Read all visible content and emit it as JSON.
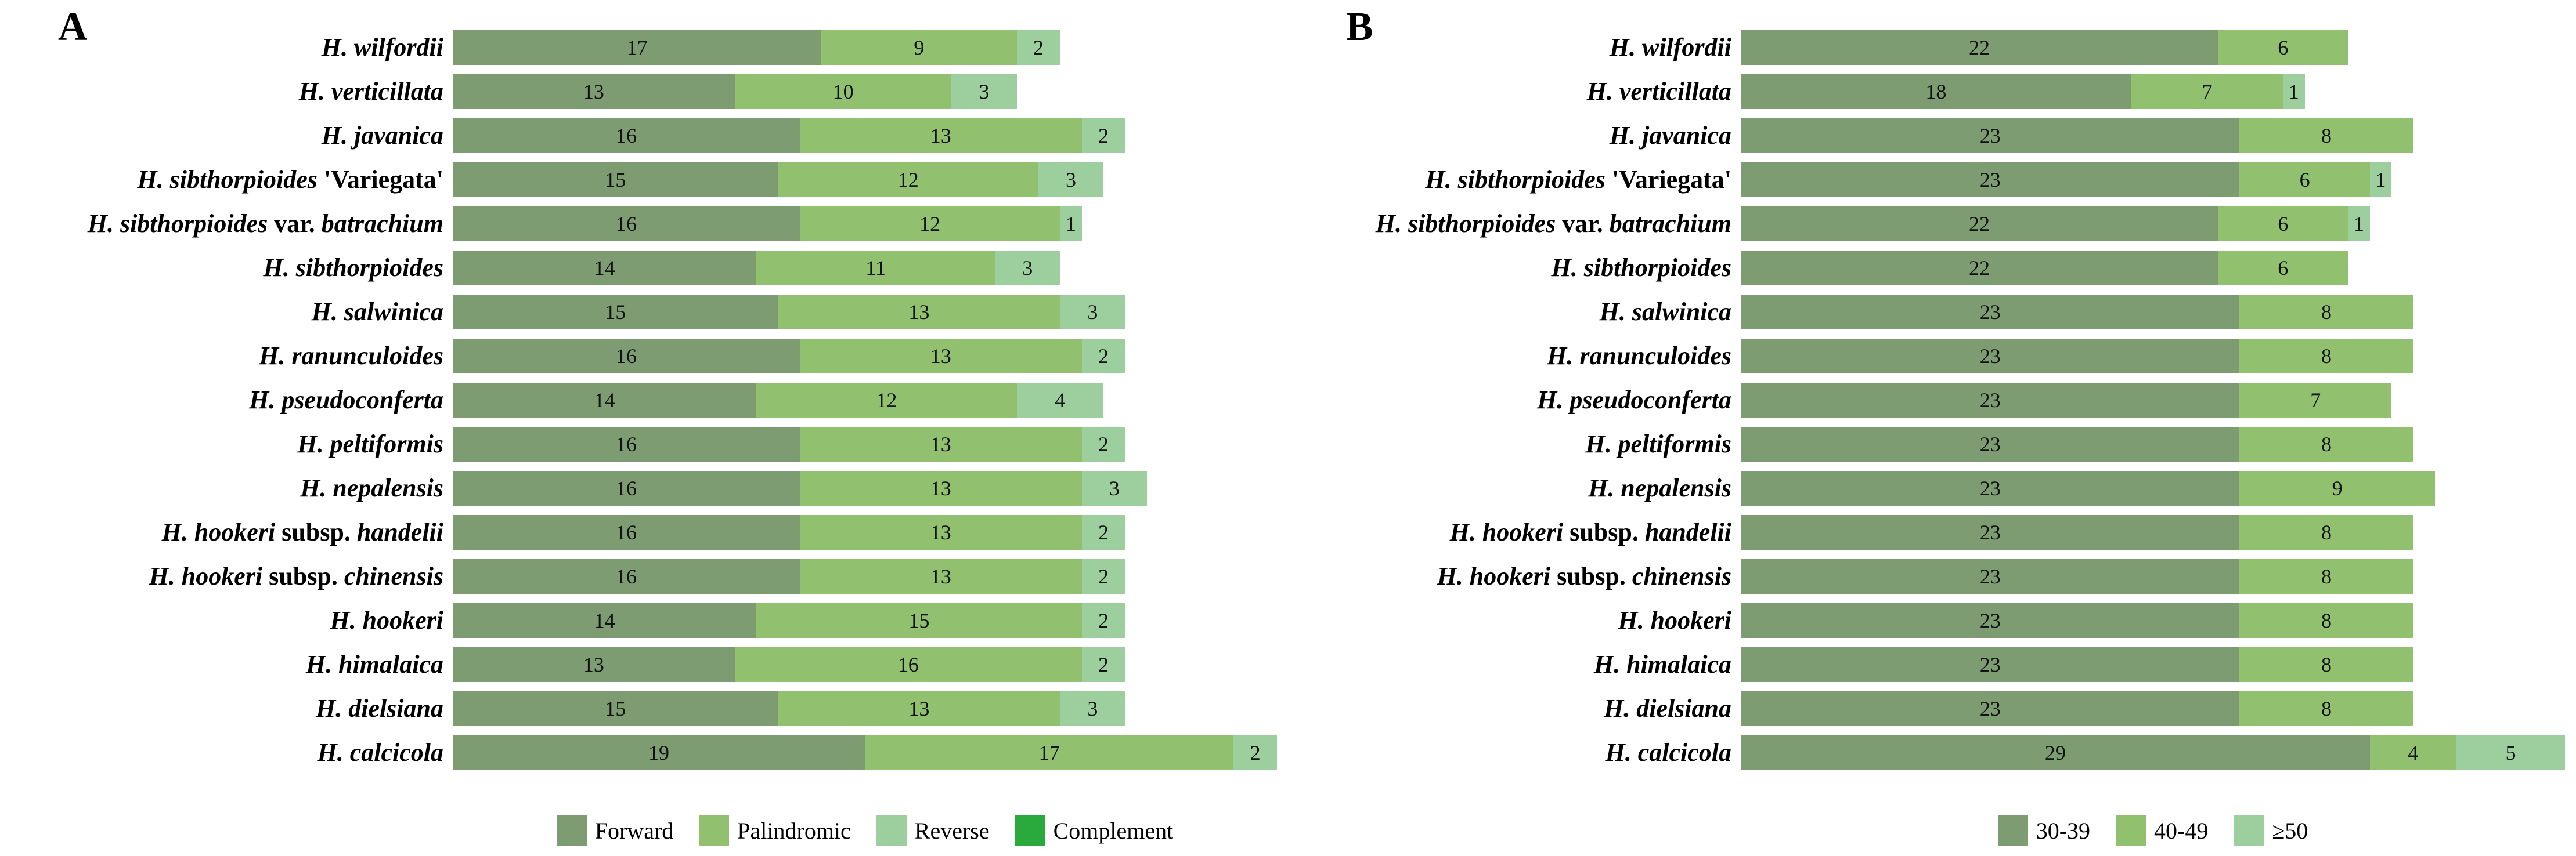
{
  "chart_data": [
    {
      "type": "bar",
      "orientation": "horizontal",
      "panel_label": "A",
      "title": "",
      "xlabel": "",
      "ylabel": "",
      "xlim": [
        0,
        38
      ],
      "grid": false,
      "legend_position": "bottom",
      "value_labels": "inside-center",
      "categories": [
        "H. wilfordii",
        "H. verticillata",
        "H. javanica",
        "H. sibthorpioides 'Variegata'",
        "H. sibthorpioides var. batrachium",
        "H. sibthorpioides",
        "H. salwinica",
        "H. ranunculoides",
        "H. pseudoconferta",
        "H. peltiformis",
        "H. nepalensis",
        "H. hookeri subsp. handelii",
        "H. hookeri subsp. chinensis",
        "H. hookeri",
        "H. himalaica",
        "H. dielsiana",
        "H. calcicola"
      ],
      "category_styled_parts": [
        [
          {
            "text": "H. wilfordii",
            "italic": true
          }
        ],
        [
          {
            "text": "H. verticillata",
            "italic": true
          }
        ],
        [
          {
            "text": "H. javanica",
            "italic": true
          }
        ],
        [
          {
            "text": "H. sibthorpioides ",
            "italic": true
          },
          {
            "text": "'Variegata'",
            "italic": false
          }
        ],
        [
          {
            "text": "H. sibthorpioides ",
            "italic": true
          },
          {
            "text": "var. ",
            "italic": false
          },
          {
            "text": "batrachium",
            "italic": true
          }
        ],
        [
          {
            "text": "H. sibthorpioides",
            "italic": true
          }
        ],
        [
          {
            "text": "H. salwinica",
            "italic": true
          }
        ],
        [
          {
            "text": "H. ranunculoides",
            "italic": true
          }
        ],
        [
          {
            "text": "H. pseudoconferta",
            "italic": true
          }
        ],
        [
          {
            "text": "H. peltiformis",
            "italic": true
          }
        ],
        [
          {
            "text": "H. nepalensis",
            "italic": true
          }
        ],
        [
          {
            "text": "H. hookeri ",
            "italic": true
          },
          {
            "text": "subsp. ",
            "italic": false
          },
          {
            "text": "handelii",
            "italic": true
          }
        ],
        [
          {
            "text": "H. hookeri ",
            "italic": true
          },
          {
            "text": "subsp. ",
            "italic": false
          },
          {
            "text": "chinensis",
            "italic": true
          }
        ],
        [
          {
            "text": "H. hookeri",
            "italic": true
          }
        ],
        [
          {
            "text": "H. himalaica",
            "italic": true
          }
        ],
        [
          {
            "text": "H. dielsiana",
            "italic": true
          }
        ],
        [
          {
            "text": "H. calcicola",
            "italic": true
          }
        ]
      ],
      "series": [
        {
          "name": "Forward",
          "color": "#7D9C71",
          "values": [
            17,
            13,
            16,
            15,
            16,
            14,
            15,
            16,
            14,
            16,
            16,
            16,
            16,
            14,
            13,
            15,
            19
          ]
        },
        {
          "name": "Palindromic",
          "color": "#91C06E",
          "values": [
            9,
            10,
            13,
            12,
            12,
            11,
            13,
            13,
            12,
            13,
            13,
            13,
            13,
            15,
            16,
            13,
            17
          ]
        },
        {
          "name": "Reverse",
          "color": "#9CCF9D",
          "values": [
            2,
            3,
            2,
            3,
            1,
            3,
            3,
            2,
            4,
            2,
            3,
            2,
            2,
            2,
            2,
            3,
            2
          ]
        },
        {
          "name": "Complement",
          "color": "#2AA93C",
          "values": [
            0,
            0,
            0,
            0,
            0,
            0,
            0,
            0,
            0,
            0,
            0,
            0,
            0,
            0,
            0,
            0,
            0
          ]
        }
      ]
    },
    {
      "type": "bar",
      "orientation": "horizontal",
      "panel_label": "B",
      "title": "",
      "xlabel": "",
      "ylabel": "",
      "xlim": [
        0,
        38
      ],
      "grid": false,
      "legend_position": "bottom",
      "value_labels": "inside-center",
      "categories": [
        "H. wilfordii",
        "H. verticillata",
        "H. javanica",
        "H. sibthorpioides 'Variegata'",
        "H. sibthorpioides var. batrachium",
        "H. sibthorpioides",
        "H. salwinica",
        "H. ranunculoides",
        "H. pseudoconferta",
        "H. peltiformis",
        "H. nepalensis",
        "H. hookeri subsp. handelii",
        "H. hookeri subsp. chinensis",
        "H. hookeri",
        "H. himalaica",
        "H. dielsiana",
        "H. calcicola"
      ],
      "category_styled_parts": [
        [
          {
            "text": "H. wilfordii",
            "italic": true
          }
        ],
        [
          {
            "text": "H. verticillata",
            "italic": true
          }
        ],
        [
          {
            "text": "H. javanica",
            "italic": true
          }
        ],
        [
          {
            "text": "H. sibthorpioides ",
            "italic": true
          },
          {
            "text": "'Variegata'",
            "italic": false
          }
        ],
        [
          {
            "text": "H. sibthorpioides ",
            "italic": true
          },
          {
            "text": "var. ",
            "italic": false
          },
          {
            "text": "batrachium",
            "italic": true
          }
        ],
        [
          {
            "text": "H. sibthorpioides",
            "italic": true
          }
        ],
        [
          {
            "text": "H. salwinica",
            "italic": true
          }
        ],
        [
          {
            "text": "H. ranunculoides",
            "italic": true
          }
        ],
        [
          {
            "text": "H. pseudoconferta",
            "italic": true
          }
        ],
        [
          {
            "text": "H. peltiformis",
            "italic": true
          }
        ],
        [
          {
            "text": "H. nepalensis",
            "italic": true
          }
        ],
        [
          {
            "text": "H. hookeri ",
            "italic": true
          },
          {
            "text": "subsp. ",
            "italic": false
          },
          {
            "text": "handelii",
            "italic": true
          }
        ],
        [
          {
            "text": "H. hookeri ",
            "italic": true
          },
          {
            "text": "subsp. ",
            "italic": false
          },
          {
            "text": "chinensis",
            "italic": true
          }
        ],
        [
          {
            "text": "H. hookeri",
            "italic": true
          }
        ],
        [
          {
            "text": "H. himalaica",
            "italic": true
          }
        ],
        [
          {
            "text": "H. dielsiana",
            "italic": true
          }
        ],
        [
          {
            "text": "H. calcicola",
            "italic": true
          }
        ]
      ],
      "series": [
        {
          "name": "30-39",
          "color": "#7D9C71",
          "values": [
            22,
            18,
            23,
            23,
            22,
            22,
            23,
            23,
            23,
            23,
            23,
            23,
            23,
            23,
            23,
            23,
            29
          ]
        },
        {
          "name": "40-49",
          "color": "#91C06E",
          "values": [
            6,
            7,
            8,
            6,
            6,
            6,
            8,
            8,
            7,
            8,
            9,
            8,
            8,
            8,
            8,
            8,
            4
          ]
        },
        {
          "name": "≥50",
          "color": "#9CCF9D",
          "values": [
            0,
            1,
            0,
            1,
            1,
            0,
            0,
            0,
            0,
            0,
            0,
            0,
            0,
            0,
            0,
            0,
            5
          ]
        }
      ]
    }
  ]
}
